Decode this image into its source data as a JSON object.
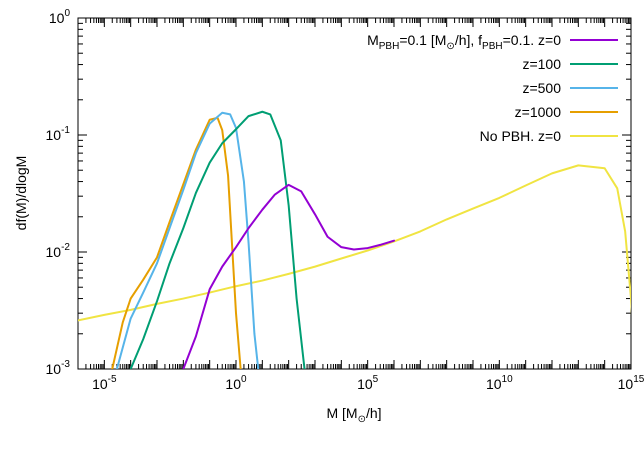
{
  "chart_data": {
    "type": "line",
    "title": "",
    "xlabel_parts": [
      "M [M",
      "⊙",
      "/h]"
    ],
    "ylabel": "df(M)/dlogM",
    "xscale": "log",
    "yscale": "log",
    "xlim": [
      1e-06,
      1000000000000000
    ],
    "ylim": [
      0.001,
      1
    ],
    "xticks": [
      {
        "value": 1e-05,
        "base": "10",
        "exp": "-5"
      },
      {
        "value": 1,
        "base": "10",
        "exp": "0"
      },
      {
        "value": 100000,
        "base": "10",
        "exp": "5"
      },
      {
        "value": 10000000000,
        "base": "10",
        "exp": "10"
      },
      {
        "value": 1000000000000000,
        "base": "10",
        "exp": "15"
      }
    ],
    "yticks": [
      {
        "value": 0.001,
        "base": "10",
        "exp": "-3"
      },
      {
        "value": 0.01,
        "base": "10",
        "exp": "-2"
      },
      {
        "value": 0.1,
        "base": "10",
        "exp": "-1"
      },
      {
        "value": 1,
        "base": "10",
        "exp": "0"
      }
    ],
    "legend_position": "top-right",
    "grid": false,
    "series": [
      {
        "name_parts": [
          {
            "t": "M"
          },
          {
            "t": "PBH",
            "sub": true
          },
          {
            "t": "=0.1 [M"
          },
          {
            "t": "⊙",
            "sub": true
          },
          {
            "t": "/h], f"
          },
          {
            "t": "PBH",
            "sub": true
          },
          {
            "t": "=0.1. z=0"
          }
        ],
        "color": "#9400d3",
        "x": [
          0.01,
          0.03,
          0.1,
          0.3,
          1,
          3,
          10,
          30,
          100,
          300,
          1000,
          3000,
          10000,
          30000,
          100000,
          300000,
          1000000
        ],
        "y": [
          0.001,
          0.0019,
          0.0048,
          0.0075,
          0.011,
          0.016,
          0.023,
          0.031,
          0.0375,
          0.033,
          0.021,
          0.0135,
          0.011,
          0.0105,
          0.0108,
          0.0115,
          0.0125
        ]
      },
      {
        "name_parts": [
          {
            "t": "z=100"
          }
        ],
        "color": "#009e73",
        "x": [
          0.0001,
          0.0003,
          0.001,
          0.003,
          0.01,
          0.03,
          0.1,
          0.3,
          1,
          3,
          10,
          20,
          50,
          100,
          200,
          400
        ],
        "y": [
          0.001,
          0.0018,
          0.0038,
          0.008,
          0.016,
          0.032,
          0.058,
          0.085,
          0.112,
          0.145,
          0.158,
          0.15,
          0.09,
          0.025,
          0.004,
          0.001
        ]
      },
      {
        "name_parts": [
          {
            "t": "z=500"
          }
        ],
        "color": "#56b4e9",
        "x": [
          3e-05,
          0.0001,
          0.0003,
          0.001,
          0.003,
          0.01,
          0.03,
          0.1,
          0.3,
          0.6,
          1,
          2,
          3,
          5,
          7
        ],
        "y": [
          0.001,
          0.0027,
          0.0045,
          0.008,
          0.016,
          0.034,
          0.07,
          0.125,
          0.155,
          0.15,
          0.115,
          0.04,
          0.012,
          0.002,
          0.001
        ]
      },
      {
        "name_parts": [
          {
            "t": "z=1000"
          }
        ],
        "color": "#e69f00",
        "x": [
          2e-05,
          5e-05,
          0.0001,
          0.0003,
          0.001,
          0.003,
          0.01,
          0.03,
          0.1,
          0.2,
          0.3,
          0.5,
          0.7,
          1,
          1.5
        ],
        "y": [
          0.001,
          0.0025,
          0.004,
          0.0058,
          0.009,
          0.018,
          0.038,
          0.075,
          0.135,
          0.14,
          0.11,
          0.045,
          0.012,
          0.003,
          0.001
        ]
      },
      {
        "name_parts": [
          {
            "t": "No PBH. z=0"
          }
        ],
        "color": "#f0e442",
        "x": [
          1e-06,
          1e-05,
          0.0001,
          0.001,
          0.01,
          0.1,
          1,
          10,
          100,
          1000,
          10000,
          100000,
          1000000,
          10000000,
          100000000,
          1000000000,
          10000000000,
          100000000000,
          1000000000000,
          10000000000000,
          100000000000000,
          300000000000000,
          600000000000000,
          1000000000000000,
          1300000000000000,
          1600000000000000
        ],
        "y": [
          0.0026,
          0.0029,
          0.0032,
          0.0036,
          0.004,
          0.0045,
          0.0051,
          0.0057,
          0.0065,
          0.0075,
          0.0088,
          0.0103,
          0.0123,
          0.015,
          0.019,
          0.0235,
          0.029,
          0.037,
          0.047,
          0.055,
          0.052,
          0.035,
          0.015,
          0.004,
          0.0015,
          0.001
        ]
      }
    ]
  }
}
